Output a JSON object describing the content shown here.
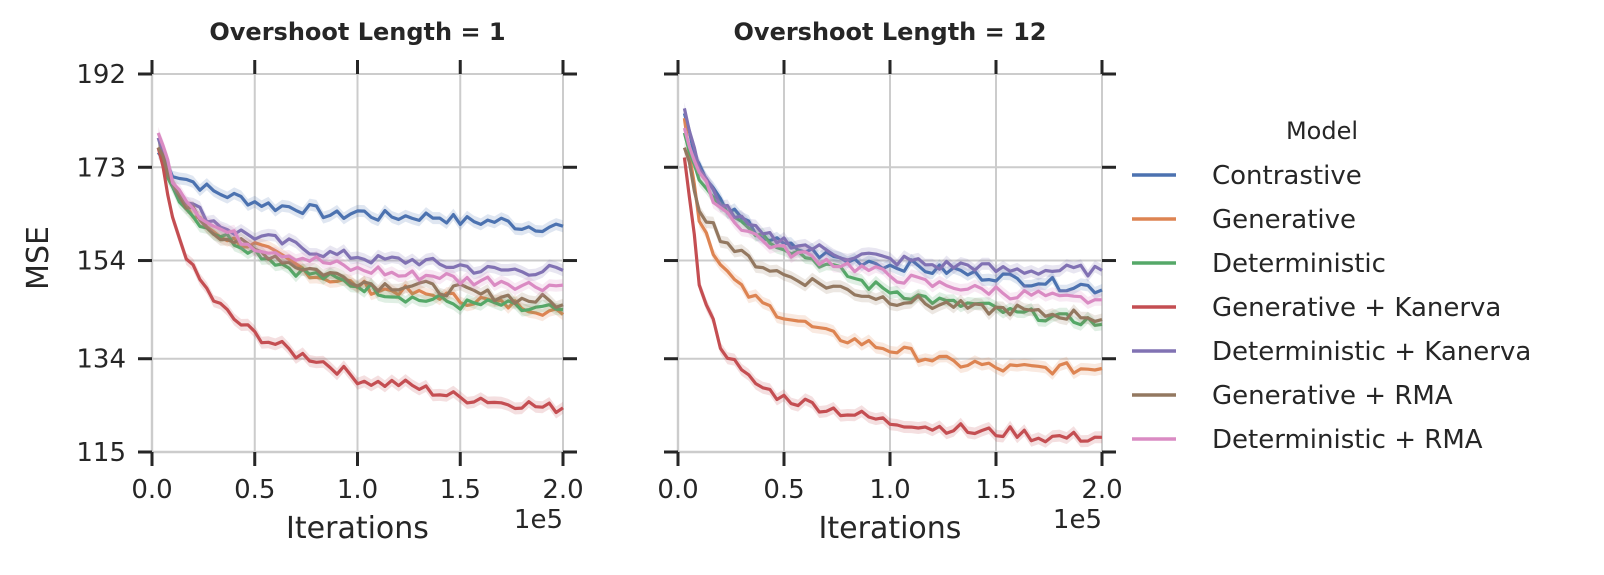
{
  "chart_data": {
    "type": "line",
    "ylabel": "MSE",
    "xlabel": "Iterations",
    "x_offset_label": "1e5",
    "xlim": [
      0,
      200000
    ],
    "ylim": [
      115,
      192
    ],
    "xticks": [
      0,
      50000,
      100000,
      150000,
      200000
    ],
    "xtick_labels": [
      "0.0",
      "0.5",
      "1.0",
      "1.5",
      "2.0"
    ],
    "yticks": [
      115,
      134,
      154,
      173,
      192
    ],
    "ytick_labels": [
      "115",
      "134",
      "154",
      "173",
      "192"
    ],
    "legend": {
      "title": "Model",
      "placement": "right"
    },
    "x": [
      3000,
      10000,
      20000,
      30000,
      40000,
      50000,
      60000,
      70000,
      80000,
      90000,
      100000,
      110000,
      120000,
      130000,
      140000,
      150000,
      160000,
      170000,
      180000,
      190000,
      200000
    ],
    "panels": [
      {
        "title": "Overshoot Length = 1",
        "series": [
          {
            "name": "Contrastive",
            "color": "#4c72b0",
            "values": [
              176,
              172,
              170,
              168,
              167,
              166,
              165,
              165,
              164,
              163,
              164,
              163,
              163,
              163,
              163,
              162,
              162,
              162,
              161,
              161,
              161
            ]
          },
          {
            "name": "Generative",
            "color": "#dd8452",
            "values": [
              177,
              170,
              163,
              160,
              158,
              157,
              155,
              153,
              151,
              150,
              149,
              148,
              148,
              147,
              147,
              146,
              146,
              145,
              145,
              144,
              143
            ]
          },
          {
            "name": "Deterministic",
            "color": "#55a868",
            "values": [
              177,
              169,
              163,
              160,
              158,
              156,
              154,
              152,
              151,
              150,
              149,
              148,
              147,
              146,
              146,
              145,
              145,
              145,
              144,
              144,
              144
            ]
          },
          {
            "name": "Generative + Kanerva",
            "color": "#c44e52",
            "values": [
              177,
              162,
              152,
              146,
              142,
              139,
              137,
              135,
              134,
              132,
              130,
              129,
              129,
              128,
              127,
              126,
              126,
              125,
              125,
              124,
              124
            ]
          },
          {
            "name": "Deterministic + Kanerva",
            "color": "#8172b3",
            "values": [
              179,
              170,
              165,
              162,
              160,
              159,
              158,
              157,
              156,
              155,
              155,
              154,
              154,
              154,
              153,
              153,
              152,
              152,
              152,
              152,
              152
            ]
          },
          {
            "name": "Generative + RMA",
            "color": "#937860",
            "values": [
              177,
              169,
              164,
              160,
              158,
              156,
              155,
              153,
              152,
              151,
              150,
              149,
              149,
              149,
              148,
              148,
              147,
              147,
              146,
              146,
              145
            ]
          },
          {
            "name": "Deterministic + RMA",
            "color": "#da8bc3",
            "values": [
              180,
              171,
              165,
              161,
              159,
              157,
              156,
              155,
              154,
              153,
              152,
              152,
              151,
              151,
              151,
              150,
              150,
              150,
              149,
              149,
              149
            ]
          }
        ]
      },
      {
        "title": "Overshoot Length = 12",
        "series": [
          {
            "name": "Contrastive",
            "color": "#4c72b0",
            "values": [
              184,
              173,
              166,
              162,
              159,
              157,
              156,
              155,
              154,
              154,
              153,
              153,
              152,
              152,
              151,
              151,
              150,
              150,
              149,
              149,
              148
            ]
          },
          {
            "name": "Generative",
            "color": "#dd8452",
            "values": [
              183,
              163,
              153,
              148,
              145,
              143,
              141,
              139,
              138,
              137,
              136,
              135,
              134,
              133,
              133,
              132,
              132,
              132,
              132,
              132,
              132
            ]
          },
          {
            "name": "Deterministic",
            "color": "#55a868",
            "values": [
              180,
              171,
              166,
              162,
              159,
              157,
              155,
              153,
              151,
              149,
              148,
              147,
              146,
              145,
              145,
              144,
              143,
              143,
              142,
              142,
              141
            ]
          },
          {
            "name": "Generative + Kanerva",
            "color": "#c44e52",
            "values": [
              175,
              150,
              137,
              131,
              128,
              126,
              125,
              124,
              123,
              122,
              121,
              121,
              120,
              120,
              119,
              119,
              119,
              118,
              118,
              118,
              118
            ]
          },
          {
            "name": "Deterministic + Kanerva",
            "color": "#8172b3",
            "values": [
              185,
              172,
              166,
              162,
              159,
              158,
              157,
              156,
              155,
              155,
              154,
              154,
              153,
              153,
              153,
              152,
              152,
              152,
              152,
              152,
              152
            ]
          },
          {
            "name": "Generative + RMA",
            "color": "#937860",
            "values": [
              177,
              165,
              159,
              155,
              153,
              151,
              150,
              149,
              148,
              147,
              146,
              146,
              145,
              145,
              144,
              144,
              144,
              143,
              143,
              143,
              142
            ]
          },
          {
            "name": "Deterministic + RMA",
            "color": "#da8bc3",
            "values": [
              181,
              171,
              165,
              161,
              158,
              156,
              155,
              154,
              153,
              152,
              151,
              150,
              149,
              149,
              148,
              148,
              147,
              147,
              146,
              146,
              146
            ]
          }
        ]
      }
    ]
  }
}
